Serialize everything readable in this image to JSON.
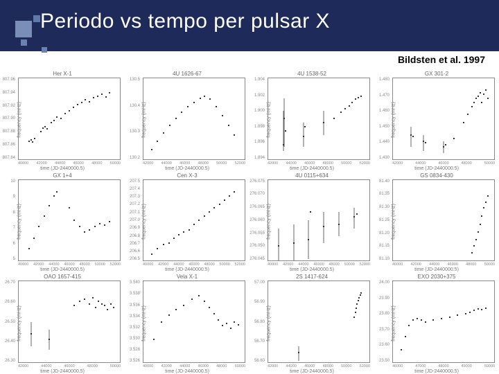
{
  "header": {
    "title": "Periodo vs tempo per pulsar X",
    "citation": "Bildsten et al. 1997",
    "bg_color": "#1e2a5a",
    "title_color": "#ffffff"
  },
  "axes_common": {
    "ylabel": "frequency (mHz)",
    "xlabel": "time (JD-2440000.5)"
  },
  "panels": [
    {
      "title": "Her X-1",
      "yticks": [
        "807.96",
        "807.94",
        "807.92",
        "807.90",
        "807.88",
        "807.86",
        "807.84"
      ],
      "xticks": [
        "40000",
        "42000",
        "44000",
        "46000",
        "48000",
        "50000"
      ],
      "pts": [
        [
          10,
          78
        ],
        [
          12,
          76
        ],
        [
          14,
          79
        ],
        [
          16,
          75
        ],
        [
          22,
          66
        ],
        [
          24,
          62
        ],
        [
          26,
          60
        ],
        [
          28,
          63
        ],
        [
          32,
          55
        ],
        [
          35,
          52
        ],
        [
          38,
          48
        ],
        [
          42,
          50
        ],
        [
          46,
          44
        ],
        [
          50,
          40
        ],
        [
          54,
          36
        ],
        [
          58,
          33
        ],
        [
          62,
          30
        ],
        [
          66,
          27
        ],
        [
          70,
          29
        ],
        [
          74,
          24
        ],
        [
          78,
          22
        ],
        [
          82,
          20
        ],
        [
          86,
          23
        ],
        [
          90,
          18
        ]
      ]
    },
    {
      "title": "4U 1626-67",
      "yticks": [
        "130.5",
        "130.4",
        "130.3",
        "130.2"
      ],
      "xticks": [
        "42000",
        "44000",
        "46000",
        "48000",
        "50000",
        "52000"
      ],
      "pts": [
        [
          8,
          88
        ],
        [
          14,
          78
        ],
        [
          20,
          68
        ],
        [
          26,
          58
        ],
        [
          32,
          50
        ],
        [
          38,
          42
        ],
        [
          44,
          35
        ],
        [
          50,
          30
        ],
        [
          56,
          25
        ],
        [
          60,
          22
        ],
        [
          66,
          26
        ],
        [
          72,
          35
        ],
        [
          78,
          46
        ],
        [
          84,
          58
        ],
        [
          90,
          70
        ]
      ]
    },
    {
      "title": "4U 1538-52",
      "yticks": [
        "1.904",
        "1.902",
        "1.900",
        "1.898",
        "1.896",
        "1.894"
      ],
      "xticks": [
        "42000",
        "44000",
        "46000",
        "48000",
        "50000",
        "52000"
      ],
      "pts": [
        [
          15,
          82
        ],
        [
          16,
          50
        ],
        [
          17,
          65
        ],
        [
          35,
          72
        ],
        [
          36,
          60
        ],
        [
          55,
          55
        ],
        [
          65,
          50
        ],
        [
          72,
          42
        ],
        [
          76,
          38
        ],
        [
          80,
          34
        ],
        [
          83,
          30
        ],
        [
          86,
          26
        ],
        [
          89,
          24
        ],
        [
          92,
          22
        ]
      ],
      "ers": [
        [
          15,
          40,
          50
        ],
        [
          16,
          25,
          60
        ],
        [
          35,
          55,
          30
        ],
        [
          55,
          40,
          30
        ]
      ]
    },
    {
      "title": "GX 301-2",
      "yticks": [
        "1.480",
        "1.470",
        "1.460",
        "1.450",
        "1.440",
        "1.430"
      ],
      "xticks": [
        "42000",
        "44000",
        "46000",
        "48000",
        "50000"
      ],
      "pts": [
        [
          18,
          70
        ],
        [
          20,
          72
        ],
        [
          30,
          78
        ],
        [
          32,
          80
        ],
        [
          50,
          85
        ],
        [
          52,
          82
        ],
        [
          60,
          75
        ],
        [
          70,
          55
        ],
        [
          74,
          45
        ],
        [
          78,
          35
        ],
        [
          80,
          30
        ],
        [
          82,
          25
        ],
        [
          84,
          22
        ],
        [
          86,
          18
        ],
        [
          88,
          30
        ],
        [
          90,
          20
        ],
        [
          92,
          15
        ],
        [
          94,
          25
        ]
      ],
      "ers": [
        [
          18,
          60,
          25
        ],
        [
          30,
          70,
          20
        ],
        [
          50,
          78,
          15
        ]
      ]
    },
    {
      "title": "GX 1+4",
      "yticks": [
        "10",
        "9",
        "8",
        "7",
        "6",
        "5"
      ],
      "xticks": [
        "40000",
        "42000",
        "44000",
        "46000",
        "48000",
        "50000",
        "52000"
      ],
      "pts": [
        [
          10,
          85
        ],
        [
          15,
          72
        ],
        [
          20,
          58
        ],
        [
          25,
          45
        ],
        [
          30,
          32
        ],
        [
          35,
          20
        ],
        [
          38,
          15
        ],
        [
          50,
          35
        ],
        [
          55,
          50
        ],
        [
          60,
          58
        ],
        [
          65,
          65
        ],
        [
          70,
          62
        ],
        [
          75,
          58
        ],
        [
          80,
          54
        ],
        [
          85,
          56
        ],
        [
          90,
          52
        ]
      ]
    },
    {
      "title": "Cen X-3",
      "yticks": [
        "207.5",
        "207.4",
        "207.3",
        "207.2",
        "207.1",
        "207.0",
        "206.9",
        "206.8",
        "206.7",
        "206.6",
        "206.5"
      ],
      "xticks": [
        "40000",
        "42000",
        "44000",
        "46000",
        "48000",
        "50000",
        "52000"
      ],
      "pts": [
        [
          8,
          92
        ],
        [
          14,
          85
        ],
        [
          20,
          80
        ],
        [
          25,
          78
        ],
        [
          30,
          72
        ],
        [
          35,
          68
        ],
        [
          40,
          65
        ],
        [
          45,
          62
        ],
        [
          50,
          55
        ],
        [
          55,
          50
        ],
        [
          60,
          45
        ],
        [
          65,
          40
        ],
        [
          70,
          35
        ],
        [
          75,
          30
        ],
        [
          80,
          25
        ],
        [
          85,
          20
        ],
        [
          90,
          15
        ]
      ]
    },
    {
      "title": "4U 0115+634",
      "yticks": [
        "276.075",
        "276.070",
        "276.065",
        "276.060",
        "276.055",
        "276.050",
        "276.045"
      ],
      "xticks": [
        "40000",
        "42000",
        "44000",
        "46000",
        "48000",
        "50000",
        "52000"
      ],
      "pts": [
        [
          10,
          82
        ],
        [
          25,
          78
        ],
        [
          40,
          74
        ],
        [
          42,
          40
        ],
        [
          55,
          58
        ],
        [
          70,
          55
        ],
        [
          85,
          46
        ],
        [
          88,
          42
        ]
      ],
      "ers": [
        [
          10,
          60,
          40
        ],
        [
          25,
          55,
          45
        ],
        [
          40,
          50,
          48
        ],
        [
          55,
          40,
          38
        ],
        [
          70,
          40,
          30
        ],
        [
          85,
          35,
          25
        ]
      ]
    },
    {
      "title": "GS 0834-430",
      "yticks": [
        "81.40",
        "81.35",
        "81.30",
        "81.25",
        "81.20",
        "81.15",
        "81.10"
      ],
      "xticks": [
        "40000",
        "42000",
        "44000",
        "46000",
        "48000",
        "50000"
      ],
      "pts": [
        [
          78,
          90
        ],
        [
          80,
          82
        ],
        [
          82,
          74
        ],
        [
          84,
          65
        ],
        [
          86,
          55
        ],
        [
          88,
          45
        ],
        [
          90,
          35
        ],
        [
          92,
          28
        ],
        [
          94,
          20
        ]
      ]
    },
    {
      "title": "OAO 1657-415",
      "yticks": [
        "26.70",
        "26.60",
        "26.50",
        "26.40",
        "26.30"
      ],
      "xticks": [
        "42000",
        "44000",
        "46000",
        "48000",
        "50000"
      ],
      "pts": [
        [
          12,
          65
        ],
        [
          30,
          72
        ],
        [
          55,
          30
        ],
        [
          60,
          25
        ],
        [
          65,
          22
        ],
        [
          70,
          28
        ],
        [
          73,
          20
        ],
        [
          76,
          32
        ],
        [
          79,
          25
        ],
        [
          82,
          28
        ],
        [
          85,
          30
        ],
        [
          88,
          35
        ],
        [
          91,
          28
        ],
        [
          94,
          32
        ]
      ],
      "ers": [
        [
          12,
          50,
          30
        ],
        [
          30,
          60,
          25
        ]
      ]
    },
    {
      "title": "Vela X-1",
      "yticks": [
        "3.540",
        "3.538",
        "3.536",
        "3.534",
        "3.532",
        "3.530",
        "3.528",
        "3.526"
      ],
      "xticks": [
        "40000",
        "42000",
        "44000",
        "46000",
        "48000",
        "50000"
      ],
      "pts": [
        [
          10,
          72
        ],
        [
          18,
          50
        ],
        [
          25,
          42
        ],
        [
          32,
          35
        ],
        [
          40,
          30
        ],
        [
          48,
          22
        ],
        [
          55,
          18
        ],
        [
          60,
          25
        ],
        [
          65,
          32
        ],
        [
          70,
          40
        ],
        [
          74,
          48
        ],
        [
          78,
          55
        ],
        [
          82,
          52
        ],
        [
          86,
          58
        ],
        [
          90,
          50
        ],
        [
          94,
          54
        ]
      ]
    },
    {
      "title": "2S 1417-624",
      "yticks": [
        "57.00",
        "56.90",
        "56.80",
        "56.70",
        "56.60"
      ],
      "xticks": [
        "42000",
        "44000",
        "46000",
        "48000",
        "50000",
        "52000"
      ],
      "pts": [
        [
          30,
          88
        ],
        [
          85,
          44
        ],
        [
          86,
          38
        ],
        [
          87,
          33
        ],
        [
          88,
          28
        ],
        [
          89,
          24
        ],
        [
          90,
          20
        ],
        [
          91,
          17
        ],
        [
          92,
          14
        ]
      ],
      "ers": [
        [
          30,
          80,
          18
        ]
      ]
    },
    {
      "title": "EXO 2030+375",
      "yticks": [
        "24.00",
        "23.90",
        "23.80",
        "23.70",
        "23.60",
        "23.50"
      ],
      "xticks": [
        "46000",
        "47000",
        "48000",
        "49000",
        "50000"
      ],
      "pts": [
        [
          8,
          85
        ],
        [
          12,
          68
        ],
        [
          16,
          55
        ],
        [
          20,
          48
        ],
        [
          24,
          46
        ],
        [
          28,
          48
        ],
        [
          32,
          50
        ],
        [
          40,
          48
        ],
        [
          48,
          46
        ],
        [
          56,
          44
        ],
        [
          64,
          42
        ],
        [
          72,
          40
        ],
        [
          76,
          38
        ],
        [
          80,
          36
        ],
        [
          84,
          34
        ],
        [
          88,
          35
        ],
        [
          92,
          33
        ]
      ]
    }
  ]
}
